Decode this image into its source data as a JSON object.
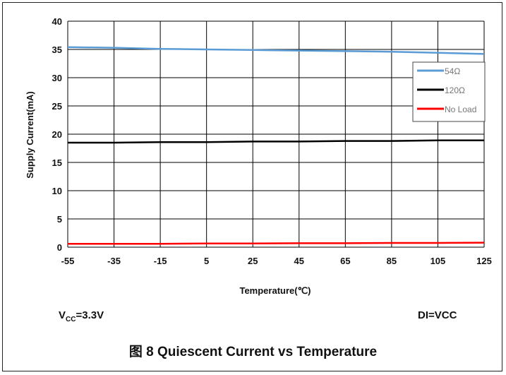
{
  "chart_data": {
    "type": "line",
    "xlabel": "Temperature(℃)",
    "ylabel": "Supply Current(mA)",
    "x_ticks": [
      -55,
      -35,
      -15,
      5,
      25,
      45,
      65,
      85,
      105,
      125
    ],
    "y_ticks": [
      0,
      5,
      10,
      15,
      20,
      25,
      30,
      35,
      40
    ],
    "xlim": [
      -55,
      125
    ],
    "ylim": [
      0,
      40
    ],
    "grid": true,
    "legend_position": "right",
    "series": [
      {
        "name": "54Ω",
        "color": "#5b9bd5",
        "x": [
          -55,
          -35,
          -15,
          5,
          25,
          45,
          65,
          85,
          105,
          125
        ],
        "y": [
          35.4,
          35.3,
          35.1,
          35.0,
          34.9,
          34.8,
          34.7,
          34.6,
          34.4,
          34.2
        ]
      },
      {
        "name": "120Ω",
        "color": "#000000",
        "x": [
          -55,
          -35,
          -15,
          5,
          25,
          45,
          65,
          85,
          105,
          125
        ],
        "y": [
          18.5,
          18.5,
          18.6,
          18.6,
          18.7,
          18.7,
          18.8,
          18.8,
          18.9,
          18.9
        ]
      },
      {
        "name": "No Load",
        "color": "#ff0000",
        "x": [
          -55,
          -35,
          -15,
          5,
          25,
          45,
          65,
          85,
          105,
          125
        ],
        "y": [
          0.6,
          0.6,
          0.6,
          0.65,
          0.65,
          0.7,
          0.7,
          0.75,
          0.75,
          0.8
        ]
      }
    ]
  },
  "notes": {
    "vcc_main": "V",
    "vcc_sub": "CC",
    "vcc_value": "=3.3V",
    "di": "DI=VCC"
  },
  "caption": "图 8 Quiescent Current vs Temperature"
}
